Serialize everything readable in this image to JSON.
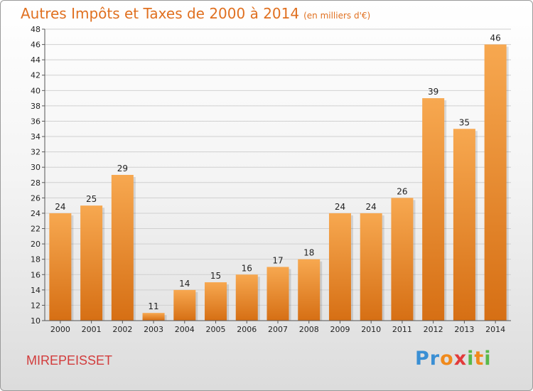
{
  "chart_data": {
    "type": "bar",
    "title": "Autres Impôts et Taxes de 2000 à 2014",
    "subtitle": "(en milliers d'€)",
    "categories": [
      "2000",
      "2001",
      "2002",
      "2003",
      "2004",
      "2005",
      "2006",
      "2007",
      "2008",
      "2009",
      "2010",
      "2011",
      "2012",
      "2013",
      "2014"
    ],
    "values": [
      24,
      25,
      29,
      11,
      14,
      15,
      16,
      17,
      18,
      24,
      24,
      26,
      39,
      35,
      46
    ],
    "ylim": [
      10,
      48
    ],
    "yticks": [
      10,
      12,
      14,
      16,
      18,
      20,
      22,
      24,
      26,
      28,
      30,
      32,
      34,
      36,
      38,
      40,
      42,
      44,
      46,
      48
    ],
    "grid": true,
    "bar_color_top": "#f7a850",
    "bar_color_bottom": "#d66f14"
  },
  "footer": {
    "city": "MIREPEISSET",
    "logo": [
      "P",
      "r",
      "o",
      "x",
      "i",
      "t",
      "i"
    ],
    "logo_colors": [
      "#3a8fd4",
      "#3a8fd4",
      "#f08a1c",
      "#e23b3b",
      "#58b94a",
      "#f08a1c",
      "#58b94a"
    ]
  }
}
